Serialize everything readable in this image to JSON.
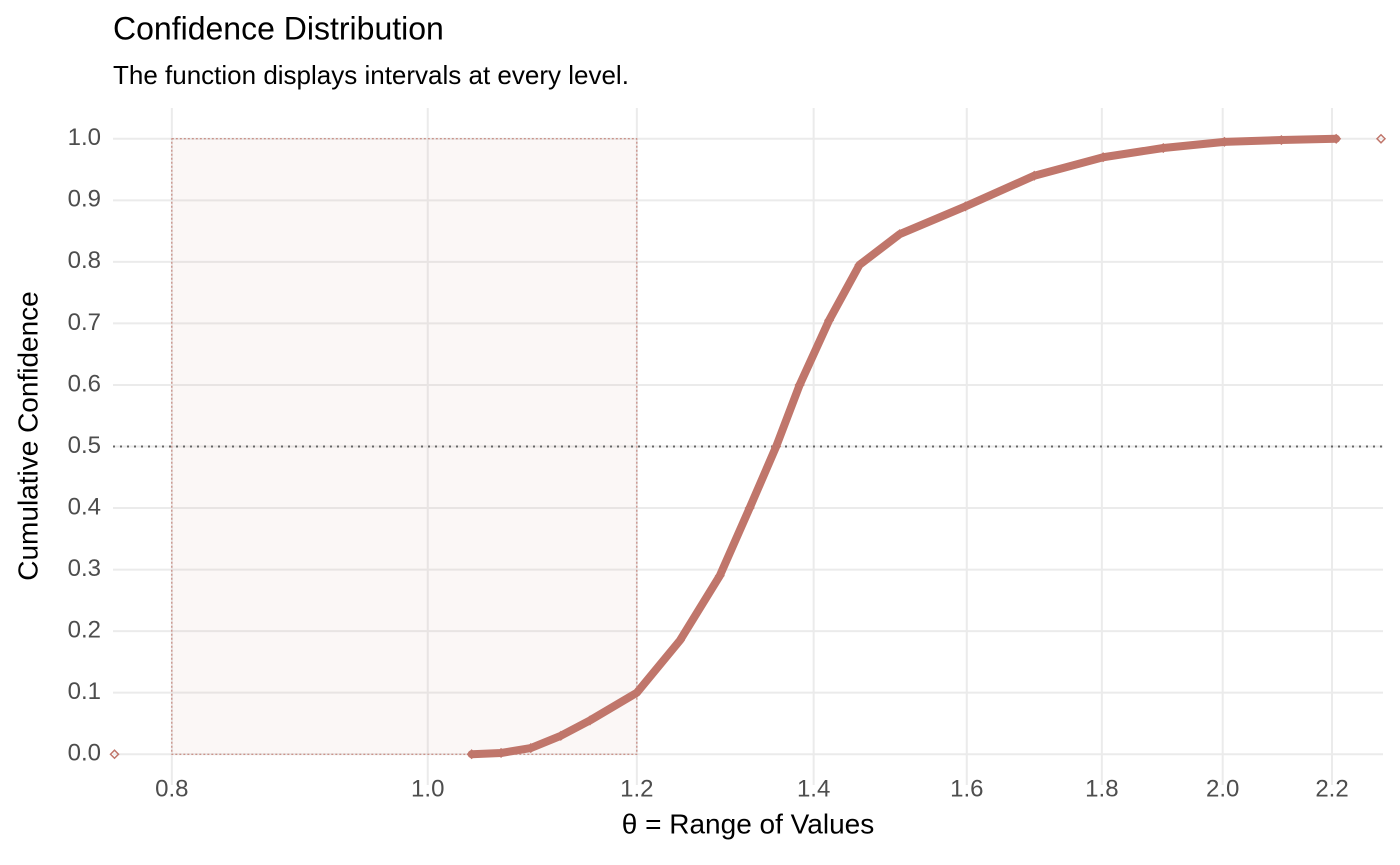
{
  "chart_data": {
    "type": "scatter",
    "title": "Confidence Distribution",
    "subtitle": "The function displays intervals at every level.",
    "x_label": "θ =  Range of Values",
    "y_label": "Cumulative Confidence",
    "x_scale": "log",
    "grid": true,
    "x": [
      0.761,
      1.039,
      1.066,
      1.094,
      1.123,
      1.152,
      1.2,
      1.246,
      1.29,
      1.324,
      1.355,
      1.383,
      1.419,
      1.457,
      1.509,
      1.598,
      1.697,
      1.802,
      1.899,
      2.003,
      2.105,
      2.208,
      2.296
    ],
    "series": [
      {
        "color": "#c0766b",
        "values": [
          0,
          0,
          0.002,
          0.01,
          0.03,
          0.055,
          0.1,
          0.185,
          0.29,
          0.4,
          0.5,
          0.6,
          0.705,
          0.795,
          0.845,
          0.89,
          0.94,
          0.97,
          0.985,
          0.995,
          0.998,
          1,
          1
        ]
      }
    ],
    "interval": {
      "xmin": 0.8,
      "xmax": 1.2,
      "ymin": 0,
      "ymax": 1,
      "color": "#c0766b"
    },
    "hline": 0.5,
    "xlim": [
      0.76,
      2.3
    ],
    "ylim": [
      -0.05,
      1.05
    ],
    "xticks": [
      0.8,
      {
        "value": 1,
        "label": "1.0"
      },
      1.2,
      1.4,
      1.6,
      1.8,
      {
        "value": 2,
        "label": "2.0"
      },
      2.2
    ],
    "yticks": [
      {
        "value": 0,
        "label": "0.0"
      },
      0.1,
      0.2,
      0.3,
      0.4,
      0.5,
      0.6,
      0.7,
      0.8,
      0.9,
      {
        "value": 1,
        "label": "1.0"
      }
    ]
  }
}
